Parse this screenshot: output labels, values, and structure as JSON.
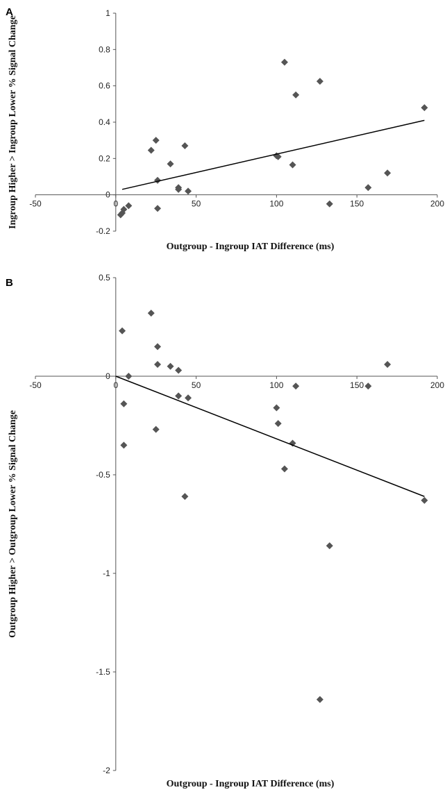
{
  "chart_data": [
    {
      "type": "scatter",
      "panel_label": "A",
      "xlabel": "Outgroup - Ingroup IAT Difference (ms)",
      "ylabel": "Ingroup Higher > Ingroup Lower % Signal Change",
      "xlim": [
        -50,
        200
      ],
      "ylim": [
        -0.2,
        1
      ],
      "xticks": [
        -50,
        0,
        50,
        100,
        150,
        200
      ],
      "yticks": [
        -0.2,
        0,
        0.2,
        0.4,
        0.6,
        0.8,
        1
      ],
      "xtick_labels": [
        "-50",
        "0",
        "50",
        "100",
        "150",
        "200"
      ],
      "ytick_labels": [
        "-0.2",
        "0",
        "0.2",
        "0.4",
        "0.6",
        "0.8",
        "1"
      ],
      "grid": false,
      "points": [
        {
          "x": 3,
          "y": -0.11
        },
        {
          "x": 4,
          "y": -0.1
        },
        {
          "x": 5,
          "y": -0.08
        },
        {
          "x": 8,
          "y": -0.06
        },
        {
          "x": 22,
          "y": 0.245
        },
        {
          "x": 25,
          "y": 0.3
        },
        {
          "x": 26,
          "y": 0.08
        },
        {
          "x": 26,
          "y": -0.075
        },
        {
          "x": 34,
          "y": 0.17
        },
        {
          "x": 39,
          "y": 0.04
        },
        {
          "x": 39,
          "y": 0.03
        },
        {
          "x": 43,
          "y": 0.27
        },
        {
          "x": 45,
          "y": 0.02
        },
        {
          "x": 100,
          "y": 0.215
        },
        {
          "x": 101,
          "y": 0.21
        },
        {
          "x": 105,
          "y": 0.73
        },
        {
          "x": 110,
          "y": 0.165
        },
        {
          "x": 112,
          "y": 0.55
        },
        {
          "x": 127,
          "y": 0.625
        },
        {
          "x": 133,
          "y": -0.05
        },
        {
          "x": 157,
          "y": 0.04
        },
        {
          "x": 169,
          "y": 0.12
        },
        {
          "x": 192,
          "y": 0.48
        }
      ],
      "trendline": {
        "x": [
          4,
          192
        ],
        "y": [
          0.03,
          0.41
        ]
      }
    },
    {
      "type": "scatter",
      "panel_label": "B",
      "xlabel": "Outgroup - Ingroup IAT Difference (ms)",
      "ylabel": "Outgroup Higher > Outgroup Lower % Signal Change",
      "xlim": [
        -50,
        200
      ],
      "ylim": [
        -2,
        0.5
      ],
      "xticks": [
        -50,
        0,
        50,
        100,
        150,
        200
      ],
      "yticks": [
        -2,
        -1.5,
        -1,
        -0.5,
        0,
        0.5
      ],
      "xtick_labels": [
        "-50",
        "0",
        "50",
        "100",
        "150",
        "200"
      ],
      "ytick_labels": [
        "-2",
        "-1.5",
        "-1",
        "-0.5",
        "0",
        "0.5"
      ],
      "grid": false,
      "points": [
        {
          "x": 4,
          "y": 0.23
        },
        {
          "x": 5,
          "y": -0.14
        },
        {
          "x": 5,
          "y": -0.35
        },
        {
          "x": 8,
          "y": 0.0
        },
        {
          "x": 22,
          "y": 0.32
        },
        {
          "x": 25,
          "y": -0.27
        },
        {
          "x": 26,
          "y": 0.15
        },
        {
          "x": 26,
          "y": 0.06
        },
        {
          "x": 34,
          "y": 0.05
        },
        {
          "x": 39,
          "y": 0.03
        },
        {
          "x": 39,
          "y": -0.1
        },
        {
          "x": 43,
          "y": -0.61
        },
        {
          "x": 45,
          "y": -0.11
        },
        {
          "x": 100,
          "y": -0.16
        },
        {
          "x": 101,
          "y": -0.24
        },
        {
          "x": 105,
          "y": -0.47
        },
        {
          "x": 110,
          "y": -0.34
        },
        {
          "x": 112,
          "y": -0.05
        },
        {
          "x": 127,
          "y": -1.64
        },
        {
          "x": 133,
          "y": -0.86
        },
        {
          "x": 157,
          "y": -0.05
        },
        {
          "x": 169,
          "y": 0.06
        },
        {
          "x": 192,
          "y": -0.63
        }
      ],
      "trendline": {
        "x": [
          0,
          192
        ],
        "y": [
          0.0,
          -0.61
        ]
      }
    }
  ]
}
